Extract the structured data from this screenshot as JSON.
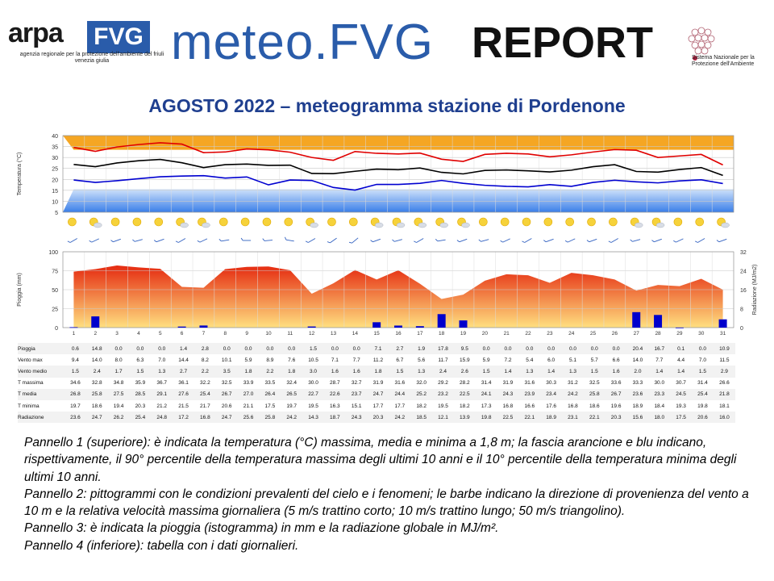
{
  "header": {
    "arpa_word": "arpa",
    "fvg_word": "FVG",
    "arpa_subtitle": "agenzia regionale per la protezione dell'ambiente del friuli venezia giulia",
    "meteo_word": "meteo.FVG",
    "report_word": "REPORT",
    "snpa_subtitle": "Sistema Nazionale per la Protezione dell'Ambiente"
  },
  "page_title": "AGOSTO 2022 – meteogramma stazione di Pordenone",
  "chart_data": [
    {
      "type": "line",
      "ylabel": "Temperatura (°C)",
      "ylim": [
        5,
        40
      ],
      "yticks": [
        5,
        10,
        15,
        20,
        25,
        30,
        35,
        40
      ],
      "x": [
        1,
        2,
        3,
        4,
        5,
        6,
        7,
        8,
        9,
        10,
        11,
        12,
        13,
        14,
        15,
        16,
        17,
        18,
        19,
        20,
        21,
        22,
        23,
        24,
        25,
        26,
        27,
        28,
        29,
        30,
        31
      ],
      "grid": true,
      "series": [
        {
          "values": [
            34.6,
            32.8,
            34.8,
            35.9,
            36.7,
            36.1,
            32.2,
            32.5,
            33.9,
            33.5,
            32.4,
            30.0,
            28.7,
            32.7,
            31.9,
            31.6,
            32.0,
            29.2,
            28.2,
            31.4,
            31.9,
            31.6,
            30.3,
            31.2,
            32.5,
            33.6,
            33.3,
            30.0,
            30.7,
            31.4,
            26.6
          ],
          "color": "#e00000"
        },
        {
          "values": [
            26.8,
            25.8,
            27.5,
            28.5,
            29.1,
            27.6,
            25.4,
            26.7,
            27.0,
            26.4,
            26.5,
            22.7,
            22.6,
            23.7,
            24.7,
            24.4,
            25.2,
            23.2,
            22.5,
            24.1,
            24.3,
            23.9,
            23.4,
            24.2,
            25.8,
            26.7,
            23.6,
            23.3,
            24.5,
            25.4,
            21.8
          ],
          "color": "#000000"
        },
        {
          "values": [
            19.7,
            18.6,
            19.4,
            20.3,
            21.2,
            21.5,
            21.7,
            20.6,
            21.1,
            17.5,
            19.7,
            19.5,
            16.3,
            15.1,
            17.7,
            17.7,
            18.2,
            19.5,
            18.2,
            17.3,
            16.8,
            16.6,
            17.6,
            16.8,
            18.6,
            19.6,
            18.9,
            18.4,
            19.3,
            19.8,
            18.1
          ],
          "color": "#0000d0"
        }
      ],
      "band_upper_p90": [
        33.5,
        33.5,
        33.5,
        33.5,
        33.5,
        33.5,
        33.5,
        33.5,
        33.5,
        33.5,
        33.5,
        33.5,
        33.5,
        33.5,
        33.5,
        33.5,
        33.5,
        33.5,
        33.5,
        33.5,
        33.5,
        33.5,
        33.5,
        33.5,
        33.5,
        33.5,
        33.5,
        33.5,
        33.5,
        33.5,
        33.5
      ],
      "band_lower_p10": [
        15.5,
        15.5,
        15.5,
        15.5,
        15.5,
        15.5,
        15.5,
        15.5,
        15.5,
        15.5,
        15.5,
        15.5,
        15.5,
        15.5,
        15.5,
        15.5,
        15.5,
        15.5,
        15.5,
        15.5,
        15.5,
        15.5,
        15.5,
        15.5,
        15.5,
        15.5,
        15.5,
        15.5,
        15.5,
        15.5,
        15.5
      ],
      "colors": {
        "upper_band": "#f5a623",
        "lower_band": "#3a7ee8"
      }
    },
    {
      "type": "bar",
      "ylabel": "Pioggia (mm)",
      "y2label": "Radiazione (MJ/m2)",
      "ylim": [
        0,
        100
      ],
      "yticks": [
        0,
        25,
        50,
        75,
        100
      ],
      "y2lim": [
        0,
        32
      ],
      "y2ticks": [
        0,
        8,
        16,
        24,
        32
      ],
      "categories": [
        "1",
        "2",
        "3",
        "4",
        "5",
        "6",
        "7",
        "8",
        "9",
        "10",
        "11",
        "12",
        "13",
        "14",
        "15",
        "16",
        "17",
        "18",
        "19",
        "20",
        "21",
        "22",
        "23",
        "24",
        "25",
        "26",
        "27",
        "28",
        "29",
        "30",
        "31"
      ],
      "series": [
        {
          "name": "Pioggia",
          "values": [
            0.6,
            14.8,
            0.0,
            0.0,
            0.0,
            1.4,
            2.8,
            0.0,
            0.0,
            0.0,
            0.0,
            1.5,
            0.0,
            0.0,
            7.1,
            2.7,
            1.9,
            17.8,
            9.5,
            0.0,
            0.0,
            0.0,
            0.0,
            0.0,
            0.0,
            0.0,
            20.4,
            16.7,
            0.1,
            0.0,
            10.9
          ],
          "color": "#0000cc"
        },
        {
          "name": "Radiazione",
          "values": [
            23.6,
            24.7,
            26.2,
            25.4,
            24.8,
            17.2,
            16.8,
            24.7,
            25.6,
            25.8,
            24.2,
            14.3,
            18.7,
            24.3,
            20.3,
            24.2,
            18.5,
            12.1,
            13.9,
            19.8,
            22.5,
            22.1,
            18.9,
            23.1,
            22.1,
            20.3,
            15.6,
            18.0,
            17.5,
            20.6,
            16.0
          ],
          "color": "#ff5a00"
        }
      ]
    }
  ],
  "table": {
    "days": [
      "1",
      "2",
      "3",
      "4",
      "5",
      "6",
      "7",
      "8",
      "9",
      "10",
      "11",
      "12",
      "13",
      "14",
      "15",
      "16",
      "17",
      "18",
      "19",
      "20",
      "21",
      "22",
      "23",
      "24",
      "25",
      "26",
      "27",
      "28",
      "29",
      "30",
      "31"
    ],
    "rows": [
      {
        "label": "Pioggia",
        "values": [
          "0.6",
          "14.8",
          "0.0",
          "0.0",
          "0.0",
          "1.4",
          "2.8",
          "0.0",
          "0.0",
          "0.0",
          "0.0",
          "1.5",
          "0.0",
          "0.0",
          "7.1",
          "2.7",
          "1.9",
          "17.8",
          "9.5",
          "0.0",
          "0.0",
          "0.0",
          "0.0",
          "0.0",
          "0.0",
          "0.0",
          "20.4",
          "16.7",
          "0.1",
          "0.0",
          "10.9"
        ]
      },
      {
        "label": "Vento max",
        "values": [
          "9.4",
          "14.0",
          "8.0",
          "6.3",
          "7.0",
          "14.4",
          "8.2",
          "10.1",
          "5.9",
          "8.9",
          "7.6",
          "10.5",
          "7.1",
          "7.7",
          "11.2",
          "6.7",
          "5.6",
          "11.7",
          "15.9",
          "5.9",
          "7.2",
          "5.4",
          "6.0",
          "5.1",
          "5.7",
          "6.6",
          "14.0",
          "7.7",
          "4.4",
          "7.0",
          "11.5"
        ]
      },
      {
        "label": "Vento medio",
        "values": [
          "1.5",
          "2.4",
          "1.7",
          "1.5",
          "1.3",
          "2.7",
          "2.2",
          "3.5",
          "1.8",
          "2.2",
          "1.8",
          "3.0",
          "1.6",
          "1.6",
          "1.8",
          "1.5",
          "1.3",
          "2.4",
          "2.6",
          "1.5",
          "1.4",
          "1.3",
          "1.4",
          "1.3",
          "1.5",
          "1.6",
          "2.0",
          "1.4",
          "1.4",
          "1.5",
          "2.9"
        ]
      },
      {
        "label": "T massima",
        "values": [
          "34.6",
          "32.8",
          "34.8",
          "35.9",
          "36.7",
          "36.1",
          "32.2",
          "32.5",
          "33.9",
          "33.5",
          "32.4",
          "30.0",
          "28.7",
          "32.7",
          "31.9",
          "31.6",
          "32.0",
          "29.2",
          "28.2",
          "31.4",
          "31.9",
          "31.6",
          "30.3",
          "31.2",
          "32.5",
          "33.6",
          "33.3",
          "30.0",
          "30.7",
          "31.4",
          "26.6"
        ]
      },
      {
        "label": "T media",
        "values": [
          "26.8",
          "25.8",
          "27.5",
          "28.5",
          "29.1",
          "27.6",
          "25.4",
          "26.7",
          "27.0",
          "26.4",
          "26.5",
          "22.7",
          "22.6",
          "23.7",
          "24.7",
          "24.4",
          "25.2",
          "23.2",
          "22.5",
          "24.1",
          "24.3",
          "23.9",
          "23.4",
          "24.2",
          "25.8",
          "26.7",
          "23.6",
          "23.3",
          "24.5",
          "25.4",
          "21.8"
        ]
      },
      {
        "label": "T minima",
        "values": [
          "19.7",
          "18.6",
          "19.4",
          "20.3",
          "21.2",
          "21.5",
          "21.7",
          "20.6",
          "21.1",
          "17.5",
          "19.7",
          "19.5",
          "16.3",
          "15.1",
          "17.7",
          "17.7",
          "18.2",
          "19.5",
          "18.2",
          "17.3",
          "16.8",
          "16.6",
          "17.6",
          "16.8",
          "18.6",
          "19.6",
          "18.9",
          "18.4",
          "19.3",
          "19.8",
          "18.1"
        ]
      },
      {
        "label": "Radiazione",
        "values": [
          "23.6",
          "24.7",
          "26.2",
          "25.4",
          "24.8",
          "17.2",
          "16.8",
          "24.7",
          "25.6",
          "25.8",
          "24.2",
          "14.3",
          "18.7",
          "24.3",
          "20.3",
          "24.2",
          "18.5",
          "12.1",
          "13.9",
          "19.8",
          "22.5",
          "22.1",
          "18.9",
          "23.1",
          "22.1",
          "20.3",
          "15.6",
          "18.0",
          "17.5",
          "20.6",
          "16.0"
        ]
      }
    ]
  },
  "legend_lines": [
    "Pannello 1 (superiore): è indicata la temperatura (°C) massima, media e minima a 1,8 m; la fascia arancione e blu indicano, rispettivamente, il 90° percentile della temperatura massima degli ultimi 10 anni e il 10° percentile della temperatura minima degli ultimi 10 anni.",
    "Pannello 2: pittogrammi con le condizioni prevalenti del cielo e i fenomeni; le barbe indicano la direzione di provenienza del vento a 10 m e la relativa velocità massima giornaliera (5 m/s trattino corto; 10 m/s trattino lungo; 50 m/s triangolino).",
    "Pannello 3: è indicata la pioggia (istogramma) in mm e la radiazione globale in MJ/m².",
    "Pannello 4 (inferiore): tabella con i dati giornalieri."
  ]
}
